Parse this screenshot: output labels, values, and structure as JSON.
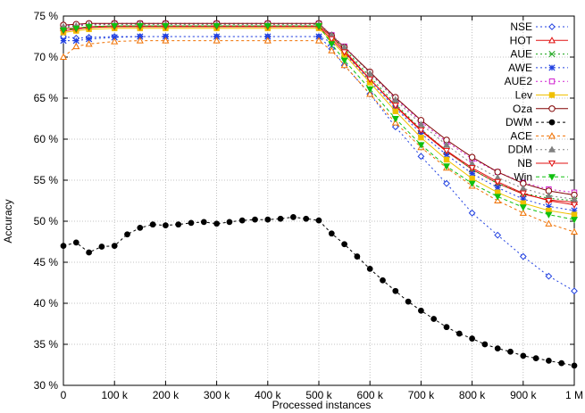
{
  "chart_data": {
    "type": "line",
    "xlabel": "Processed instances",
    "ylabel": "Accuracy",
    "xlim": [
      0,
      1000000
    ],
    "ylim": [
      30,
      75
    ],
    "grid": true,
    "legend_position": "top-right",
    "x_ticks": [
      {
        "value": 0,
        "label": "0"
      },
      {
        "value": 100000,
        "label": "100 k"
      },
      {
        "value": 200000,
        "label": "200 k"
      },
      {
        "value": 300000,
        "label": "300 k"
      },
      {
        "value": 400000,
        "label": "400 k"
      },
      {
        "value": 500000,
        "label": "500 k"
      },
      {
        "value": 600000,
        "label": "600 k"
      },
      {
        "value": 700000,
        "label": "700 k"
      },
      {
        "value": 800000,
        "label": "800 k"
      },
      {
        "value": 900000,
        "label": "900 k"
      },
      {
        "value": 1000000,
        "label": "1 M"
      }
    ],
    "y_ticks": [
      {
        "value": 30,
        "label": "30 %"
      },
      {
        "value": 35,
        "label": "35 %"
      },
      {
        "value": 40,
        "label": "40 %"
      },
      {
        "value": 45,
        "label": "45 %"
      },
      {
        "value": 50,
        "label": "50 %"
      },
      {
        "value": 55,
        "label": "55 %"
      },
      {
        "value": 60,
        "label": "60 %"
      },
      {
        "value": 65,
        "label": "65 %"
      },
      {
        "value": 70,
        "label": "70 %"
      },
      {
        "value": 75,
        "label": "75 %"
      }
    ],
    "series": [
      {
        "name": "NSE",
        "color": "#1f3fe0",
        "marker": "diamond-open",
        "dash": "2,3",
        "x": [
          0,
          25000,
          50000,
          100000,
          150000,
          200000,
          300000,
          400000,
          500000,
          525000,
          550000,
          600000,
          650000,
          700000,
          750000,
          800000,
          850000,
          900000,
          950000,
          1000000
        ],
        "y": [
          72.5,
          72.3,
          72.4,
          72.5,
          72.5,
          72.5,
          72.5,
          72.5,
          72.5,
          71.0,
          69.0,
          65.5,
          61.5,
          57.9,
          54.6,
          51.0,
          48.3,
          45.7,
          43.3,
          41.5
        ]
      },
      {
        "name": "HOT",
        "color": "#e01010",
        "marker": "triangle-open",
        "dash": "",
        "x": [
          0,
          25000,
          50000,
          100000,
          150000,
          200000,
          300000,
          400000,
          500000,
          525000,
          550000,
          600000,
          650000,
          700000,
          750000,
          800000,
          850000,
          900000,
          950000,
          1000000
        ],
        "y": [
          73.5,
          73.5,
          73.7,
          73.8,
          73.8,
          73.8,
          73.8,
          73.8,
          73.8,
          72.5,
          70.8,
          67.3,
          64.0,
          61.0,
          58.5,
          56.3,
          54.6,
          53.3,
          52.6,
          52.3
        ]
      },
      {
        "name": "AUE",
        "color": "#10a010",
        "marker": "x",
        "dash": "2,3",
        "x": [
          0,
          25000,
          50000,
          100000,
          150000,
          200000,
          300000,
          400000,
          500000,
          525000,
          550000,
          600000,
          650000,
          700000,
          750000,
          800000,
          850000,
          900000,
          950000,
          1000000
        ],
        "y": [
          73.6,
          73.8,
          73.9,
          74.0,
          74.0,
          74.0,
          74.0,
          74.0,
          74.0,
          72.6,
          71.0,
          67.6,
          64.3,
          61.2,
          58.6,
          56.3,
          54.6,
          53.4,
          52.8,
          52.5
        ]
      },
      {
        "name": "AWE",
        "color": "#1f3fe0",
        "marker": "star",
        "dash": "2,3",
        "x": [
          0,
          25000,
          50000,
          100000,
          150000,
          200000,
          300000,
          400000,
          500000,
          525000,
          550000,
          600000,
          650000,
          700000,
          750000,
          800000,
          850000,
          900000,
          950000,
          1000000
        ],
        "y": [
          72.0,
          72.0,
          72.2,
          72.4,
          72.5,
          72.5,
          72.5,
          72.5,
          72.5,
          71.8,
          70.5,
          67.1,
          63.8,
          60.7,
          58.1,
          55.8,
          54.1,
          52.7,
          51.8,
          51.3
        ]
      },
      {
        "name": "AUE2",
        "color": "#d020d0",
        "marker": "square-open",
        "dash": "2,3",
        "x": [
          0,
          25000,
          50000,
          100000,
          150000,
          200000,
          300000,
          400000,
          500000,
          525000,
          550000,
          600000,
          650000,
          700000,
          750000,
          800000,
          850000,
          900000,
          950000,
          1000000
        ],
        "y": [
          73.8,
          73.9,
          74.0,
          74.1,
          74.1,
          74.1,
          74.1,
          74.1,
          74.1,
          72.7,
          71.3,
          68.1,
          65.0,
          62.1,
          59.7,
          57.6,
          56.0,
          54.7,
          53.9,
          53.5
        ]
      },
      {
        "name": "Lev",
        "color": "#f0c000",
        "marker": "square-filled",
        "dash": "",
        "x": [
          0,
          25000,
          50000,
          100000,
          150000,
          200000,
          300000,
          400000,
          500000,
          525000,
          550000,
          600000,
          650000,
          700000,
          750000,
          800000,
          850000,
          900000,
          950000,
          1000000
        ],
        "y": [
          73.0,
          73.2,
          73.4,
          73.5,
          73.5,
          73.5,
          73.5,
          73.5,
          73.5,
          72.0,
          70.3,
          66.9,
          63.4,
          60.2,
          57.5,
          55.2,
          53.5,
          52.2,
          51.3,
          50.8
        ]
      },
      {
        "name": "Oza",
        "color": "#800000",
        "marker": "circle-open",
        "dash": "",
        "x": [
          0,
          25000,
          50000,
          100000,
          150000,
          200000,
          300000,
          400000,
          500000,
          525000,
          550000,
          600000,
          650000,
          700000,
          750000,
          800000,
          850000,
          900000,
          950000,
          1000000
        ],
        "y": [
          73.9,
          74.0,
          74.1,
          74.1,
          74.1,
          74.1,
          74.1,
          74.1,
          74.1,
          72.6,
          71.2,
          68.2,
          65.1,
          62.3,
          59.9,
          57.8,
          56.0,
          54.6,
          53.7,
          53.2
        ]
      },
      {
        "name": "DWM",
        "color": "#000000",
        "marker": "circle-filled",
        "dash": "3,3",
        "x": [
          0,
          25000,
          50000,
          75000,
          100000,
          125000,
          150000,
          175000,
          200000,
          225000,
          250000,
          275000,
          300000,
          325000,
          350000,
          375000,
          400000,
          425000,
          450000,
          475000,
          500000,
          525000,
          550000,
          575000,
          600000,
          625000,
          650000,
          675000,
          700000,
          725000,
          750000,
          775000,
          800000,
          825000,
          850000,
          875000,
          900000,
          925000,
          950000,
          975000,
          1000000
        ],
        "y": [
          47.0,
          47.4,
          46.2,
          46.9,
          47.0,
          48.4,
          49.2,
          49.6,
          49.5,
          49.6,
          49.8,
          49.9,
          49.7,
          49.9,
          50.1,
          50.2,
          50.2,
          50.3,
          50.5,
          50.3,
          50.1,
          48.5,
          47.2,
          45.7,
          44.2,
          42.8,
          41.5,
          40.2,
          39.1,
          38.1,
          37.1,
          36.3,
          35.7,
          35.0,
          34.5,
          34.1,
          33.6,
          33.3,
          33.0,
          32.7,
          32.4
        ]
      },
      {
        "name": "ACE",
        "color": "#f07000",
        "marker": "triangle-open",
        "dash": "3,3",
        "x": [
          0,
          25000,
          50000,
          100000,
          150000,
          200000,
          300000,
          400000,
          500000,
          525000,
          550000,
          600000,
          650000,
          700000,
          750000,
          800000,
          850000,
          900000,
          950000,
          1000000
        ],
        "y": [
          70.0,
          71.3,
          71.6,
          71.9,
          72.0,
          72.0,
          72.0,
          72.0,
          72.0,
          70.8,
          69.0,
          65.5,
          62.0,
          59.0,
          56.5,
          54.3,
          52.5,
          51.0,
          49.7,
          48.7
        ]
      },
      {
        "name": "DDM",
        "color": "#808080",
        "marker": "triangle-filled",
        "dash": "2,3",
        "x": [
          0,
          25000,
          50000,
          100000,
          150000,
          200000,
          300000,
          400000,
          500000,
          525000,
          550000,
          600000,
          650000,
          700000,
          750000,
          800000,
          850000,
          900000,
          950000,
          1000000
        ],
        "y": [
          73.7,
          73.8,
          73.9,
          74.0,
          74.0,
          74.0,
          74.0,
          74.0,
          74.0,
          72.7,
          71.2,
          68.0,
          64.8,
          61.8,
          59.3,
          57.0,
          55.3,
          54.0,
          53.1,
          52.7
        ]
      },
      {
        "name": "NB",
        "color": "#e01010",
        "marker": "triangle-down-open",
        "dash": "",
        "x": [
          0,
          25000,
          50000,
          100000,
          150000,
          200000,
          300000,
          400000,
          500000,
          525000,
          550000,
          600000,
          650000,
          700000,
          750000,
          800000,
          850000,
          900000,
          950000,
          1000000
        ],
        "y": [
          73.2,
          73.4,
          73.6,
          73.7,
          73.7,
          73.7,
          73.7,
          73.7,
          73.7,
          72.2,
          70.6,
          67.3,
          64.1,
          61.1,
          58.6,
          56.5,
          54.8,
          53.4,
          52.5,
          52.0
        ]
      },
      {
        "name": "Win",
        "color": "#10c010",
        "marker": "triangle-down-filled",
        "dash": "4,3",
        "x": [
          0,
          25000,
          50000,
          100000,
          150000,
          200000,
          300000,
          400000,
          500000,
          525000,
          550000,
          600000,
          650000,
          700000,
          750000,
          800000,
          850000,
          900000,
          950000,
          1000000
        ],
        "y": [
          73.3,
          73.5,
          73.7,
          73.8,
          73.8,
          73.8,
          73.8,
          73.8,
          73.8,
          71.6,
          69.6,
          66.1,
          62.5,
          59.3,
          56.7,
          54.6,
          53.0,
          51.7,
          50.8,
          50.2
        ]
      }
    ]
  }
}
